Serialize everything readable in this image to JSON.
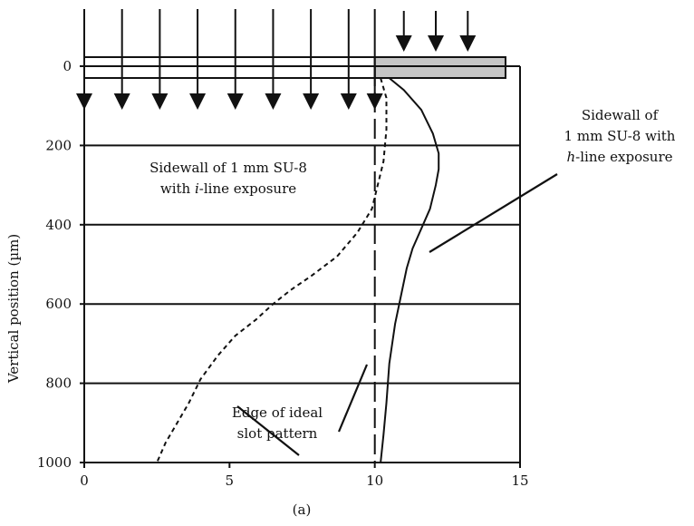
{
  "chart_data": {
    "type": "line",
    "title": "",
    "xlabel": "",
    "ylabel": "Vertical position (µm)",
    "caption": "(a)",
    "xlim": [
      0,
      15
    ],
    "ylim": [
      0,
      1000
    ],
    "y_inverted": true,
    "x_ticks": [
      0,
      5,
      10,
      15
    ],
    "y_ticks": [
      0,
      200,
      400,
      600,
      800,
      1000
    ],
    "grid": "horizontal",
    "series": [
      {
        "style": "dashed",
        "points": [
          [
            10.2,
            30
          ],
          [
            10.4,
            80
          ],
          [
            10.4,
            160
          ],
          [
            10.3,
            240
          ],
          [
            10.1,
            300
          ],
          [
            9.9,
            360
          ],
          [
            9.4,
            420
          ],
          [
            8.7,
            480
          ],
          [
            7.8,
            530
          ],
          [
            7.1,
            565
          ],
          [
            6.5,
            600
          ],
          [
            5.9,
            640
          ],
          [
            5.2,
            680
          ],
          [
            4.6,
            730
          ],
          [
            4.0,
            790
          ],
          [
            3.6,
            850
          ],
          [
            3.2,
            900
          ],
          [
            2.8,
            950
          ],
          [
            2.5,
            1000
          ]
        ]
      },
      {
        "style": "solid",
        "points": [
          [
            10.5,
            30
          ],
          [
            11.0,
            60
          ],
          [
            11.6,
            110
          ],
          [
            12.0,
            170
          ],
          [
            12.2,
            220
          ],
          [
            12.2,
            260
          ],
          [
            12.1,
            300
          ],
          [
            11.9,
            360
          ],
          [
            11.6,
            410
          ],
          [
            11.3,
            460
          ],
          [
            11.1,
            510
          ],
          [
            10.9,
            580
          ],
          [
            10.7,
            650
          ],
          [
            10.5,
            750
          ],
          [
            10.4,
            850
          ],
          [
            10.3,
            930
          ],
          [
            10.2,
            1000
          ]
        ]
      },
      {
        "style": "long-dash",
        "points": [
          [
            10,
            0
          ],
          [
            10,
            1000
          ]
        ]
      }
    ],
    "mask_bar": {
      "x_start": 0,
      "x_end": 10,
      "fill": "#ffffff"
    },
    "absorber_bar": {
      "x_start": 10,
      "x_end": 14.5,
      "fill": "#c6c6c6"
    },
    "top_arrow_xs": [
      0,
      1.3,
      2.6,
      3.9,
      5.2,
      6.5,
      7.8,
      9.1,
      10
    ],
    "right_arrow_xs": [
      11,
      12.1,
      13.2
    ],
    "bottom_arrow_xs": [
      0,
      1.3,
      2.6,
      3.9,
      5.2,
      6.5,
      7.8,
      9.1,
      10
    ],
    "annotations": [
      {
        "lines": [
          "Sidewall of 1 mm SU-8",
          "with |i|-line exposure"
        ]
      },
      {
        "lines": [
          "Sidewall of",
          "1 mm SU-8 with",
          "|h|-line exposure"
        ]
      },
      {
        "lines": [
          "Edge of ideal",
          "slot pattern"
        ]
      }
    ]
  }
}
